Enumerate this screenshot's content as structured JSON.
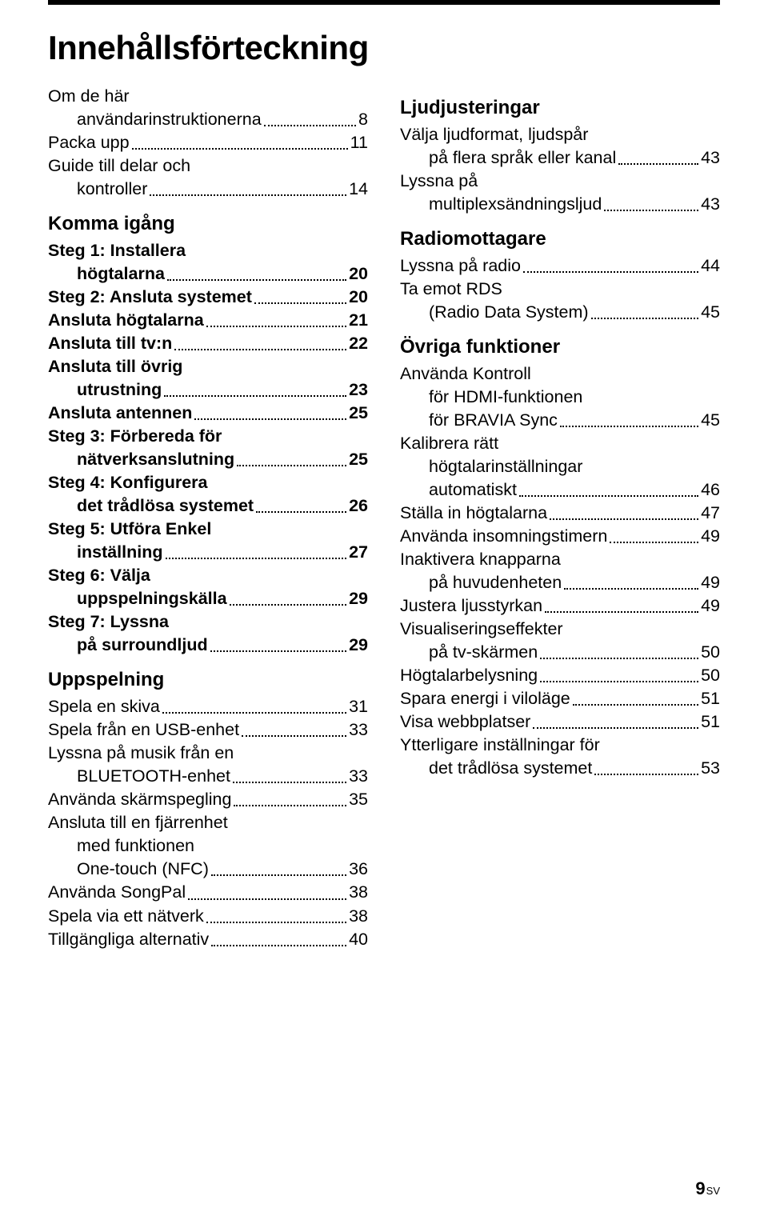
{
  "title": "Innehållsförteckning",
  "footer": {
    "page": "9",
    "lang": "SV"
  },
  "left": [
    {
      "type": "cont",
      "text": "Om de här",
      "indent": 0
    },
    {
      "type": "entry",
      "text": "användarinstruktionerna",
      "page": "8",
      "indent": 1
    },
    {
      "type": "entry",
      "text": "Packa upp",
      "page": "11",
      "indent": 0
    },
    {
      "type": "cont",
      "text": "Guide till delar och",
      "indent": 0
    },
    {
      "type": "entry",
      "text": "kontroller",
      "page": "14",
      "indent": 1
    },
    {
      "type": "heading",
      "text": "Komma igång"
    },
    {
      "type": "cont",
      "text": "Steg 1: Installera",
      "bold": true,
      "indent": 0
    },
    {
      "type": "entry",
      "text": "högtalarna",
      "page": "20",
      "bold": true,
      "indent": 1
    },
    {
      "type": "entry",
      "text": "Steg 2: Ansluta systemet",
      "page": "20",
      "bold": true,
      "indent": 0
    },
    {
      "type": "entry",
      "text": "Ansluta högtalarna",
      "page": "21",
      "bold": true,
      "indent": 0
    },
    {
      "type": "entry",
      "text": "Ansluta till tv:n",
      "page": "22",
      "bold": true,
      "indent": 0
    },
    {
      "type": "cont",
      "text": "Ansluta till övrig",
      "bold": true,
      "indent": 0
    },
    {
      "type": "entry",
      "text": "utrustning",
      "page": "23",
      "bold": true,
      "indent": 1
    },
    {
      "type": "entry",
      "text": "Ansluta antennen",
      "page": "25",
      "bold": true,
      "indent": 0
    },
    {
      "type": "cont",
      "text": "Steg 3: Förbereda för",
      "bold": true,
      "indent": 0
    },
    {
      "type": "entry",
      "text": "nätverksanslutning",
      "page": "25",
      "bold": true,
      "indent": 1
    },
    {
      "type": "cont",
      "text": "Steg 4: Konfigurera",
      "bold": true,
      "indent": 0
    },
    {
      "type": "entry",
      "text": "det trådlösa systemet",
      "page": "26",
      "bold": true,
      "indent": 1
    },
    {
      "type": "cont",
      "text": "Steg 5: Utföra Enkel",
      "bold": true,
      "indent": 0
    },
    {
      "type": "entry",
      "text": "inställning",
      "page": "27",
      "bold": true,
      "indent": 1
    },
    {
      "type": "cont",
      "text": "Steg 6: Välja",
      "bold": true,
      "indent": 0
    },
    {
      "type": "entry",
      "text": "uppspelningskälla",
      "page": "29",
      "bold": true,
      "indent": 1
    },
    {
      "type": "cont",
      "text": "Steg 7: Lyssna",
      "bold": true,
      "indent": 0
    },
    {
      "type": "entry",
      "text": "på surroundljud",
      "page": "29",
      "bold": true,
      "indent": 1
    },
    {
      "type": "heading",
      "text": "Uppspelning"
    },
    {
      "type": "entry",
      "text": "Spela en skiva",
      "page": "31",
      "indent": 0
    },
    {
      "type": "entry",
      "text": "Spela från en USB-enhet",
      "page": "33",
      "indent": 0
    },
    {
      "type": "cont",
      "text": "Lyssna på musik från en",
      "indent": 0
    },
    {
      "type": "entry",
      "text": "BLUETOOTH-enhet",
      "page": "33",
      "indent": 1
    },
    {
      "type": "entry",
      "text": "Använda skärmspegling",
      "page": "35",
      "indent": 0
    },
    {
      "type": "cont",
      "text": "Ansluta till en fjärrenhet",
      "indent": 0
    },
    {
      "type": "cont",
      "text": "med funktionen",
      "indent": 1
    },
    {
      "type": "entry",
      "text": "One-touch (NFC)",
      "page": "36",
      "indent": 1
    },
    {
      "type": "entry",
      "text": "Använda SongPal",
      "page": "38",
      "indent": 0
    },
    {
      "type": "entry",
      "text": "Spela via ett nätverk",
      "page": "38",
      "indent": 0
    },
    {
      "type": "entry",
      "text": "Tillgängliga alternativ",
      "page": "40",
      "indent": 0
    }
  ],
  "right": [
    {
      "type": "heading",
      "text": "Ljudjusteringar"
    },
    {
      "type": "cont",
      "text": "Välja ljudformat, ljudspår",
      "indent": 0
    },
    {
      "type": "entry",
      "text": "på flera språk eller kanal",
      "page": "43",
      "indent": 1
    },
    {
      "type": "cont",
      "text": "Lyssna på",
      "indent": 0
    },
    {
      "type": "entry",
      "text": "multiplexsändningsljud",
      "page": "43",
      "indent": 1
    },
    {
      "type": "heading",
      "text": "Radiomottagare"
    },
    {
      "type": "entry",
      "text": "Lyssna på radio",
      "page": "44",
      "indent": 0
    },
    {
      "type": "cont",
      "text": "Ta emot RDS",
      "indent": 0
    },
    {
      "type": "entry",
      "text": "(Radio Data System)",
      "page": "45",
      "indent": 1
    },
    {
      "type": "heading",
      "text": "Övriga funktioner"
    },
    {
      "type": "cont",
      "text": "Använda Kontroll",
      "indent": 0
    },
    {
      "type": "cont",
      "text": "för HDMI-funktionen",
      "indent": 1
    },
    {
      "type": "entry",
      "text": "för BRAVIA Sync",
      "page": "45",
      "indent": 1
    },
    {
      "type": "cont",
      "text": "Kalibrera rätt",
      "indent": 0
    },
    {
      "type": "cont",
      "text": "högtalarinställningar",
      "indent": 1
    },
    {
      "type": "entry",
      "text": "automatiskt",
      "page": "46",
      "indent": 1
    },
    {
      "type": "entry",
      "text": "Ställa in högtalarna",
      "page": "47",
      "indent": 0
    },
    {
      "type": "entry",
      "text": "Använda insomningstimern",
      "page": "49",
      "indent": 0
    },
    {
      "type": "cont",
      "text": "Inaktivera knapparna",
      "indent": 0
    },
    {
      "type": "entry",
      "text": "på huvudenheten",
      "page": "49",
      "indent": 1
    },
    {
      "type": "entry",
      "text": "Justera ljusstyrkan",
      "page": "49",
      "indent": 0
    },
    {
      "type": "cont",
      "text": "Visualiseringseffekter",
      "indent": 0
    },
    {
      "type": "entry",
      "text": "på tv-skärmen",
      "page": "50",
      "indent": 1
    },
    {
      "type": "entry",
      "text": "Högtalarbelysning",
      "page": "50",
      "indent": 0
    },
    {
      "type": "entry",
      "text": "Spara energi i viloläge",
      "page": "51",
      "indent": 0
    },
    {
      "type": "entry",
      "text": "Visa webbplatser",
      "page": "51",
      "indent": 0
    },
    {
      "type": "cont",
      "text": "Ytterligare inställningar för",
      "indent": 0
    },
    {
      "type": "entry",
      "text": "det trådlösa systemet",
      "page": "53",
      "indent": 1
    }
  ]
}
